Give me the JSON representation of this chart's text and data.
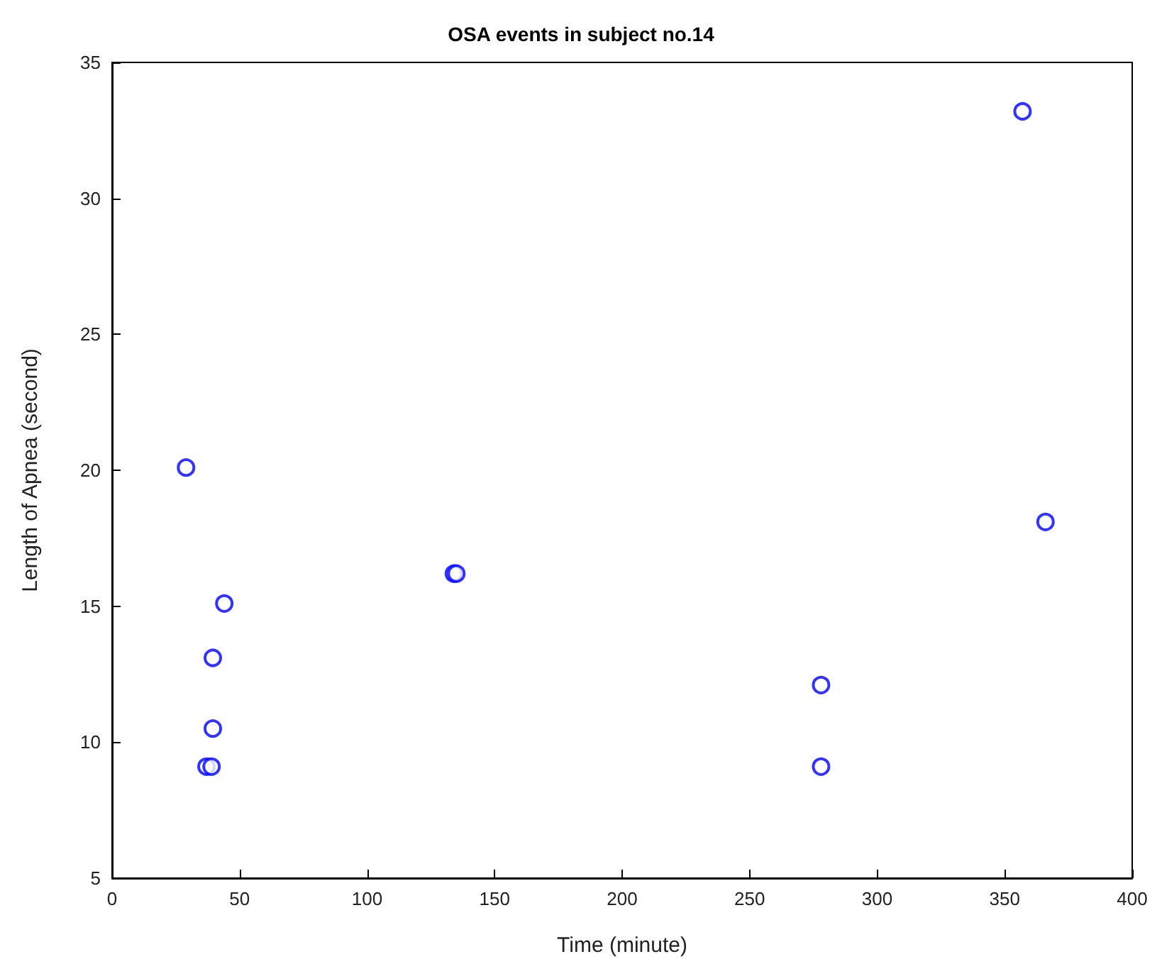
{
  "chart_data": {
    "type": "scatter",
    "title": "OSA events in subject no.14",
    "xlabel": "Time (minute)",
    "ylabel": "Length of Apnea (second)",
    "x": [
      29,
      44,
      39.5,
      39.5,
      37,
      39,
      134,
      135,
      278,
      278,
      357,
      366
    ],
    "values": [
      20.1,
      15.1,
      13.1,
      10.5,
      9.1,
      9.1,
      16.2,
      16.2,
      12.1,
      9.1,
      33.2,
      18.1
    ],
    "color": "#0000ff",
    "marker": "circle",
    "xlim": [
      0,
      400
    ],
    "xticks": [
      0,
      50,
      100,
      150,
      200,
      250,
      300,
      350,
      400
    ],
    "ylim": [
      5,
      35
    ],
    "yticks": [
      5,
      10,
      15,
      20,
      25,
      30,
      35
    ],
    "grid": false
  }
}
